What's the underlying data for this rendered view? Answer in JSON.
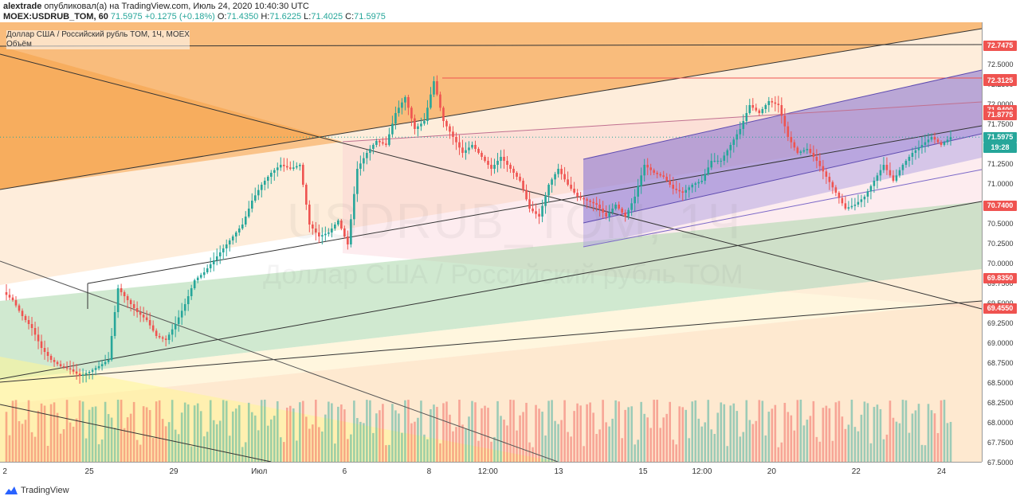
{
  "header": {
    "author": "alextrade",
    "published": "опубликовал(а) на TradingView.com, Июль 24, 2020 10:40:30 UTC",
    "symbol": "MOEX:USDRUB_TOM, 60",
    "last": "71.5975",
    "change": "+0.1275 (+0.18%)",
    "o_label": "O:",
    "o": "71.4350",
    "h_label": "H:",
    "h": "71.6225",
    "l_label": "L:",
    "l": "71.4025",
    "c_label": "C:",
    "c": "71.5975"
  },
  "legend": {
    "title": "Доллар США / Российский рубль TOM, 1Ч, MOEX",
    "volume": "Объём"
  },
  "watermark": {
    "symbol": "USDRUB_TOM, 1Ч",
    "name": "Доллар США / Российский рубль TOM"
  },
  "footer": {
    "brand": "TradingView"
  },
  "colors": {
    "up": "#26a69a",
    "down": "#ef5350",
    "tag": "#ef5350",
    "last_tag": "#26a69a"
  },
  "chart_data": {
    "type": "candlestick",
    "y_range": [
      67.5,
      73.0
    ],
    "y_ticks": [
      "72.5000",
      "72.2500",
      "72.0000",
      "71.7500",
      "71.5000",
      "71.2500",
      "71.0000",
      "70.7500",
      "70.5000",
      "70.2500",
      "70.0000",
      "69.7500",
      "69.5000",
      "69.2500",
      "69.0000",
      "68.7500",
      "68.5000",
      "68.2500",
      "68.0000",
      "67.7500",
      "67.5000"
    ],
    "x_ticks": [
      {
        "label": "2",
        "x": 0.005
      },
      {
        "label": "25",
        "x": 0.091
      },
      {
        "label": "29",
        "x": 0.177
      },
      {
        "label": "Июл",
        "x": 0.264
      },
      {
        "label": "6",
        "x": 0.351
      },
      {
        "label": "8",
        "x": 0.437
      },
      {
        "label": "12:00",
        "x": 0.497
      },
      {
        "label": "13",
        "x": 0.569
      },
      {
        "label": "15",
        "x": 0.655
      },
      {
        "label": "12:00",
        "x": 0.715
      },
      {
        "label": "20",
        "x": 0.786
      },
      {
        "label": "22",
        "x": 0.872
      },
      {
        "label": "24",
        "x": 0.959
      }
    ],
    "price_tags": [
      {
        "value": "72.7475",
        "price": 72.7475
      },
      {
        "value": "72.3325",
        "price": 72.3325
      },
      {
        "value": "72.3125",
        "price": 72.3125
      },
      {
        "value": "71.9400",
        "price": 71.94
      },
      {
        "value": "71.8775",
        "price": 71.8775
      },
      {
        "value": "70.7400",
        "price": 70.74
      },
      {
        "value": "69.8350",
        "price": 69.835
      },
      {
        "value": "69.4550",
        "price": 69.455
      }
    ],
    "last_price": {
      "value": "71.5975",
      "price": 71.5975,
      "countdown": "19:28"
    },
    "ohlc_path": [
      69.65,
      69.55,
      69.35,
      69.2,
      68.95,
      68.8,
      68.72,
      68.68,
      68.6,
      68.65,
      68.72,
      68.8,
      69.7,
      69.55,
      69.4,
      69.3,
      69.1,
      69.05,
      69.25,
      69.5,
      69.8,
      69.9,
      70.05,
      70.2,
      70.35,
      70.5,
      70.8,
      71.0,
      71.15,
      71.25,
      71.2,
      71.25,
      70.5,
      70.35,
      70.4,
      70.55,
      70.25,
      71.2,
      71.4,
      71.55,
      71.5,
      71.9,
      72.1,
      71.7,
      71.8,
      72.3,
      71.8,
      71.6,
      71.4,
      71.5,
      71.35,
      71.2,
      71.35,
      71.2,
      71.05,
      70.7,
      70.6,
      71.0,
      71.2,
      71.0,
      70.85,
      70.8,
      70.75,
      70.6,
      70.75,
      70.6,
      70.85,
      71.25,
      71.15,
      71.1,
      70.95,
      70.9,
      71.0,
      71.05,
      71.3,
      71.3,
      71.5,
      71.7,
      72.0,
      71.9,
      72.05,
      72.0,
      71.6,
      71.4,
      71.45,
      71.3,
      71.1,
      70.9,
      70.7,
      70.75,
      70.85,
      71.05,
      71.25,
      71.05,
      71.25,
      71.4,
      71.5,
      71.6,
      71.5,
      71.5975
    ],
    "volume_range": [
      0,
      1
    ]
  }
}
